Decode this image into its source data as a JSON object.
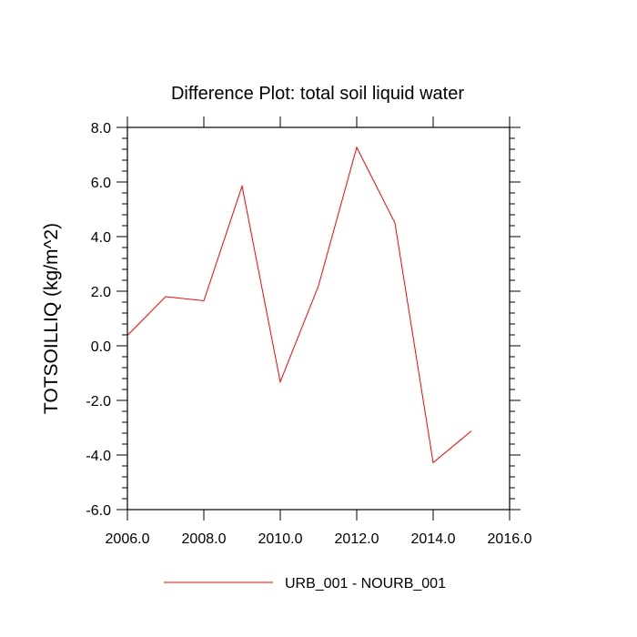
{
  "chart_data": {
    "type": "line",
    "title": "Difference Plot: total soil liquid water",
    "xlabel": "",
    "ylabel": "TOTSOILLIQ  (kg/m^2)",
    "xlim": [
      2006.0,
      2016.0
    ],
    "ylim": [
      -6.0,
      8.0
    ],
    "x_ticks": [
      2006,
      2008,
      2010,
      2012,
      2014,
      2016
    ],
    "x_tick_labels": [
      "2006.0",
      "2008.0",
      "2010.0",
      "2012.0",
      "2014.0",
      "2016.0"
    ],
    "y_ticks": [
      -6,
      -4,
      -2,
      0,
      2,
      4,
      6,
      8
    ],
    "y_tick_labels": [
      "-6.0",
      "-4.0",
      "-2.0",
      "0.0",
      "2.0",
      "4.0",
      "6.0",
      "8.0"
    ],
    "grid": false,
    "legend_position": "bottom-center",
    "series": [
      {
        "name": "URB_001 - NOURB_001",
        "color": "#ff0000",
        "x": [
          2006,
          2007,
          2008,
          2009,
          2010,
          2011,
          2012,
          2013,
          2014,
          2015
        ],
        "y": [
          0.38,
          1.8,
          1.65,
          5.85,
          -1.32,
          2.2,
          7.27,
          4.5,
          -4.28,
          -3.12
        ]
      }
    ]
  }
}
